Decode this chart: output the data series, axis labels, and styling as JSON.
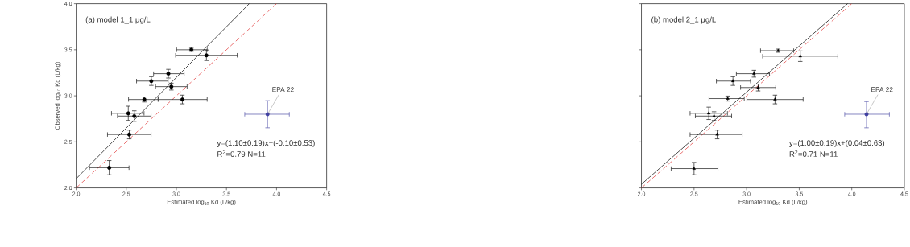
{
  "chart_data": [
    {
      "type": "scatter",
      "title": "(a) model 1_1 μg/L",
      "xlabel": "Estimated log$_{10}$ Kd (L/kg)",
      "ylabel": "Observed log$_{10}$ Kd (L/kg)",
      "xlim": [
        2.0,
        4.5
      ],
      "ylim": [
        2.0,
        4.0
      ],
      "xticks": [
        {
          "value": 2.0,
          "label": "2.0"
        },
        {
          "value": 2.5,
          "label": "2.5"
        },
        {
          "value": 3.0,
          "label": "3.0"
        },
        {
          "value": 3.5,
          "label": "3.5"
        },
        {
          "value": 4.0,
          "label": "4.0"
        },
        {
          "value": 4.5,
          "label": "4.5"
        }
      ],
      "yticks": [
        {
          "value": 2.0,
          "label": "2.0"
        },
        {
          "value": 2.5,
          "label": "2.5"
        },
        {
          "value": 3.0,
          "label": "3.0"
        },
        {
          "value": 3.5,
          "label": "3.5"
        },
        {
          "value": 4.0,
          "label": "4.0"
        }
      ],
      "annotations": [
        "y=(1.10±0.19)x+(-0.10±0.53)",
        "R$^{2}$=0.79 N=11",
        {
          "text": "EPA 22",
          "x": 3.91,
          "y": 2.8
        }
      ],
      "series": [
        {
          "type": "line",
          "color": "#000000",
          "line_style": "solid",
          "x": [
            2.0,
            3.727
          ],
          "values": [
            2.1,
            4.0
          ]
        },
        {
          "type": "line",
          "color": "#e03030",
          "line_style": "dashed",
          "x": [
            2.0,
            4.0
          ],
          "values": [
            2.0,
            4.0
          ]
        },
        {
          "type": "scatter",
          "color": "#000000",
          "marker": "circle",
          "x": [
            3.15,
            3.3,
            2.92,
            2.75,
            2.95,
            2.68,
            3.06,
            2.52,
            2.58,
            2.53,
            2.33
          ],
          "values": [
            3.5,
            3.44,
            3.24,
            3.16,
            3.1,
            2.96,
            2.96,
            2.81,
            2.78,
            2.58,
            2.22
          ],
          "errors": [
            0.02,
            0.06,
            0.05,
            0.05,
            0.04,
            0.03,
            0.05,
            0.08,
            0.06,
            0.05,
            0.08
          ],
          "xerrors": [
            [
              3.0,
              3.31
            ],
            [
              2.99,
              3.61
            ],
            [
              2.77,
              3.08
            ],
            [
              2.6,
              2.92
            ],
            [
              2.79,
              3.11
            ],
            [
              2.52,
              2.82
            ],
            [
              2.82,
              3.31
            ],
            [
              2.35,
              2.68
            ],
            [
              2.41,
              2.75
            ],
            [
              2.31,
              2.75
            ],
            [
              2.13,
              2.53
            ]
          ]
        },
        {
          "type": "scatter",
          "color": "#4040a0",
          "marker": "circle",
          "x": [
            3.91
          ],
          "values": [
            2.8
          ],
          "errors": [
            [
              2.65,
              2.95
            ]
          ],
          "xerrors": [
            [
              3.68,
              4.13
            ]
          ]
        }
      ]
    },
    {
      "type": "scatter",
      "title": "(b) model 2_1 μg/L",
      "xlabel": "Estimated log$_{10}$ Kd (L/kg)",
      "xlim": [
        2.0,
        4.5
      ],
      "ylim": [
        2.0,
        4.0
      ],
      "tick_labels": "x",
      "xticks": [
        {
          "value": 2.0,
          "label": "2.0"
        },
        {
          "value": 2.5,
          "label": "2.5"
        },
        {
          "value": 3.0,
          "label": "3.0"
        },
        {
          "value": 3.5,
          "label": "3.5"
        },
        {
          "value": 4.0,
          "label": "4.0"
        },
        {
          "value": 4.5,
          "label": "4.5"
        }
      ],
      "yticks": [
        {
          "value": 2.0,
          "label": null
        },
        {
          "value": 2.5,
          "label": null
        },
        {
          "value": 3.0,
          "label": null
        },
        {
          "value": 3.5,
          "label": null
        },
        {
          "value": 4.0,
          "label": null
        }
      ],
      "annotations": [
        "y=(1.00±0.19)x+(0.04±0.63)",
        "R$^{2}$=0.71 N=11",
        {
          "text": "EPA 22",
          "x": 4.14,
          "y": 2.8
        }
      ],
      "series": [
        {
          "type": "line",
          "color": "#000000",
          "line_style": "solid",
          "x": [
            2.0,
            3.96
          ],
          "values": [
            2.04,
            4.0
          ]
        },
        {
          "type": "line",
          "color": "#e03030",
          "line_style": "dashed",
          "x": [
            2.0,
            4.0
          ],
          "values": [
            2.0,
            4.0
          ]
        },
        {
          "type": "scatter",
          "color": "#000000",
          "marker": "triangle",
          "x": [
            3.3,
            3.51,
            3.07,
            2.87,
            3.11,
            2.82,
            3.27,
            2.64,
            2.69,
            2.72,
            2.5
          ],
          "values": [
            3.49,
            3.43,
            3.24,
            3.16,
            3.09,
            2.97,
            2.96,
            2.81,
            2.78,
            2.58,
            2.21
          ],
          "errors": [
            0.02,
            0.06,
            0.04,
            0.05,
            0.04,
            0.03,
            0.05,
            0.07,
            0.05,
            0.05,
            0.07
          ],
          "xerrors": [
            [
              3.13,
              3.45
            ],
            [
              3.15,
              3.87
            ],
            [
              2.9,
              3.22
            ],
            [
              2.71,
              3.04
            ],
            [
              2.94,
              3.28
            ],
            [
              2.64,
              2.98
            ],
            [
              3.0,
              3.54
            ],
            [
              2.46,
              2.82
            ],
            [
              2.51,
              2.86
            ],
            [
              2.46,
              2.96
            ],
            [
              2.28,
              2.73
            ]
          ]
        },
        {
          "type": "scatter",
          "color": "#4040a0",
          "marker": "circle",
          "x": [
            4.14
          ],
          "values": [
            2.8
          ],
          "errors": [
            [
              2.65,
              2.94
            ]
          ],
          "xerrors": [
            [
              3.93,
              4.36
            ]
          ]
        }
      ]
    }
  ]
}
